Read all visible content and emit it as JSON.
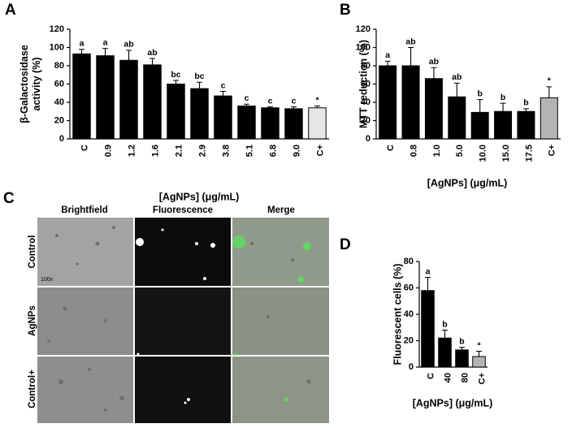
{
  "chart_data": [
    {
      "type": "bar",
      "panel": "A",
      "ylabel": [
        "β-Galactosidase",
        "activity (%)"
      ],
      "xlabel": "[AgNPs] (μg/mL)",
      "categories": [
        "C",
        "0.9",
        "1.2",
        "1.6",
        "2.1",
        "2.9",
        "3.8",
        "5.1",
        "6.8",
        "9.0",
        "C+"
      ],
      "values": [
        93,
        91,
        86,
        81,
        60,
        55,
        47,
        36,
        34,
        33,
        34
      ],
      "errors": [
        5,
        8,
        11,
        7,
        4,
        7,
        5,
        2,
        1,
        2,
        2
      ],
      "annotations": [
        "a",
        "a",
        "ab",
        "ab",
        "bc",
        "bc",
        "c",
        "c",
        "c",
        "c",
        "*"
      ],
      "colors": [
        "#000000",
        "#000000",
        "#000000",
        "#000000",
        "#000000",
        "#000000",
        "#000000",
        "#000000",
        "#000000",
        "#000000",
        "#e6e6e6"
      ],
      "ylim": [
        0,
        120
      ],
      "yticks": [
        0,
        20,
        40,
        60,
        80,
        100,
        120
      ]
    },
    {
      "type": "bar",
      "panel": "B",
      "ylabel": [
        "MTT reduction (%)"
      ],
      "xlabel": "[AgNPs] (μg/mL)",
      "categories": [
        "C",
        "0.8",
        "1.0",
        "5.0",
        "10.0",
        "15.0",
        "17.5",
        "C+"
      ],
      "values": [
        80,
        80,
        66,
        46,
        29,
        30,
        30,
        45
      ],
      "errors": [
        5,
        20,
        12,
        15,
        14,
        9,
        3,
        12
      ],
      "annotations": [
        "a",
        "ab",
        "ab",
        "ab",
        "b",
        "b",
        "b",
        "*"
      ],
      "colors": [
        "#000000",
        "#000000",
        "#000000",
        "#000000",
        "#000000",
        "#000000",
        "#000000",
        "#b4b4b4"
      ],
      "ylim": [
        0,
        120
      ],
      "yticks": [
        0,
        20,
        40,
        60,
        80,
        100,
        120
      ]
    },
    {
      "type": "bar",
      "panel": "D",
      "ylabel": [
        "Fluorescent cells (%)"
      ],
      "xlabel": "[AgNPs] (μg/mL)",
      "categories": [
        "C",
        "40",
        "80",
        "C+"
      ],
      "values": [
        58,
        22,
        13,
        8
      ],
      "errors": [
        10,
        6,
        2,
        4
      ],
      "annotations": [
        "a",
        "b",
        "b",
        "*"
      ],
      "colors": [
        "#000000",
        "#000000",
        "#000000",
        "#b4b4b4"
      ],
      "ylim": [
        0,
        80
      ],
      "yticks": [
        0,
        20,
        40,
        60,
        80
      ]
    }
  ],
  "microscopy": {
    "panel": "C",
    "columns": [
      "Brightfield",
      "Fluorescence",
      "Merge"
    ],
    "rows": [
      "Control",
      "AgNPs",
      "Control+"
    ],
    "magnification": "100x"
  }
}
